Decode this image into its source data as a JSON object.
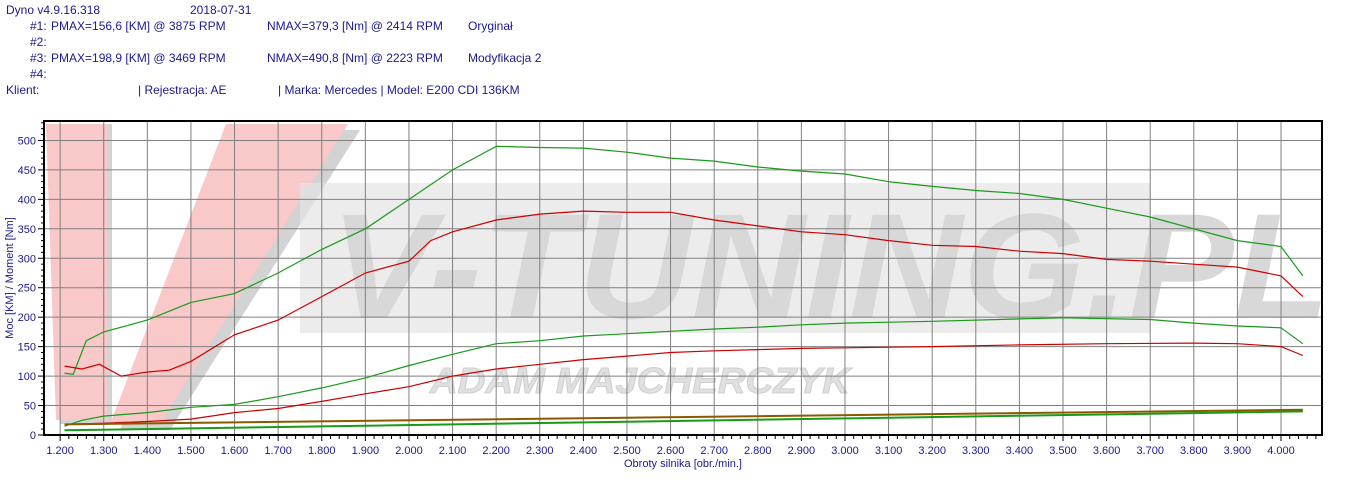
{
  "header": {
    "version": "Dyno v4.9.16.318",
    "date": "2018-07-31",
    "runs": [
      {
        "id": "#1:",
        "pmax": "PMAX=156,6 [KM] @ 3875 RPM",
        "nmax": "NMAX=379,3 [Nm] @ 2414 RPM",
        "name": "Oryginał"
      },
      {
        "id": "#2:",
        "pmax": "",
        "nmax": "",
        "name": ""
      },
      {
        "id": "#3:",
        "pmax": "PMAX=198,9 [KM] @ 3469 RPM",
        "nmax": "NMAX=490,8 [Nm] @ 2223 RPM",
        "name": "Modyfikacja 2"
      },
      {
        "id": "#4:",
        "pmax": "",
        "nmax": "",
        "name": ""
      }
    ],
    "client_label": "Klient:",
    "registration": "| Rejestracja: AE",
    "make_model": "| Marka: Mercedes | Model: E200 CDI 136KM"
  },
  "watermark": {
    "logo_text": "V-TUNING.PL",
    "sub_text": "ADAM MAJCHERCZYK"
  },
  "chart_data": {
    "type": "line",
    "xlabel": "Obroty silnika [obr./min.]",
    "ylabel": "Moc [KM] / Moment [Nm]",
    "xlim": [
      1163,
      4094
    ],
    "ylim": [
      0,
      533
    ],
    "grid": true,
    "xticks": [
      "1.200",
      "1.300",
      "1.400",
      "1.500",
      "1.600",
      "1.700",
      "1.800",
      "1.900",
      "2.000",
      "2.100",
      "2.200",
      "2.300",
      "2.400",
      "2.500",
      "2.600",
      "2.700",
      "2.800",
      "2.900",
      "3.000",
      "3.100",
      "3.200",
      "3.300",
      "3.400",
      "3.500",
      "3.600",
      "3.700",
      "3.800",
      "3.900",
      "4.000"
    ],
    "yticks": [
      0,
      50,
      100,
      150,
      200,
      250,
      300,
      350,
      400,
      450,
      500
    ],
    "colors": {
      "original": "#cc0000",
      "mod": "#1a9a1a",
      "loss_original": "#8b5a00",
      "loss_mod": "#1a9a1a"
    },
    "series": [
      {
        "key": "torque_mod",
        "color": "#1a9a1a",
        "x": [
          1210,
          1230,
          1260,
          1300,
          1400,
          1500,
          1600,
          1700,
          1800,
          1900,
          2000,
          2100,
          2200,
          2300,
          2400,
          2500,
          2600,
          2700,
          2800,
          2900,
          3000,
          3100,
          3200,
          3300,
          3400,
          3500,
          3600,
          3700,
          3800,
          3900,
          4000,
          4050
        ],
        "y": [
          105,
          103,
          160,
          175,
          195,
          225,
          240,
          275,
          315,
          350,
          400,
          450,
          490,
          488,
          487,
          480,
          470,
          465,
          455,
          448,
          443,
          430,
          422,
          415,
          410,
          400,
          385,
          370,
          350,
          330,
          320,
          270
        ]
      },
      {
        "key": "torque_original",
        "color": "#cc0000",
        "x": [
          1210,
          1250,
          1290,
          1340,
          1400,
          1450,
          1500,
          1600,
          1700,
          1800,
          1900,
          2000,
          2050,
          2100,
          2200,
          2300,
          2400,
          2500,
          2600,
          2700,
          2800,
          2900,
          3000,
          3100,
          3200,
          3300,
          3400,
          3500,
          3600,
          3700,
          3800,
          3900,
          4000,
          4050
        ],
        "y": [
          117,
          112,
          120,
          100,
          107,
          110,
          125,
          170,
          195,
          235,
          275,
          295,
          330,
          345,
          365,
          375,
          380,
          378,
          378,
          365,
          355,
          345,
          340,
          330,
          322,
          320,
          312,
          308,
          298,
          295,
          290,
          285,
          270,
          235
        ]
      },
      {
        "key": "power_mod",
        "color": "#1a9a1a",
        "x": [
          1210,
          1250,
          1300,
          1400,
          1500,
          1600,
          1700,
          1800,
          1900,
          2000,
          2100,
          2200,
          2300,
          2400,
          2500,
          2600,
          2700,
          2800,
          2900,
          3000,
          3200,
          3400,
          3500,
          3700,
          3800,
          3900,
          4000,
          4050
        ],
        "y": [
          15,
          25,
          32,
          38,
          47,
          52,
          65,
          80,
          97,
          118,
          137,
          155,
          160,
          168,
          172,
          176,
          180,
          183,
          187,
          190,
          193,
          197,
          199,
          196,
          190,
          185,
          182,
          155
        ]
      },
      {
        "key": "power_original",
        "color": "#cc0000",
        "x": [
          1210,
          1300,
          1400,
          1500,
          1600,
          1700,
          1800,
          1900,
          2000,
          2100,
          2200,
          2300,
          2400,
          2500,
          2600,
          2700,
          2800,
          2900,
          3000,
          3200,
          3400,
          3600,
          3800,
          3900,
          4000,
          4050
        ],
        "y": [
          18,
          20,
          23,
          27,
          38,
          45,
          57,
          70,
          82,
          100,
          112,
          120,
          128,
          134,
          140,
          143,
          145,
          147,
          148,
          150,
          153,
          155,
          156,
          155,
          150,
          135
        ]
      },
      {
        "key": "loss_original",
        "color": "#8b5a00",
        "x": [
          1210,
          4050
        ],
        "y": [
          18,
          43
        ]
      },
      {
        "key": "loss_mod",
        "color": "#1a9a1a",
        "x": [
          1210,
          4050
        ],
        "y": [
          8,
          40
        ]
      }
    ]
  }
}
